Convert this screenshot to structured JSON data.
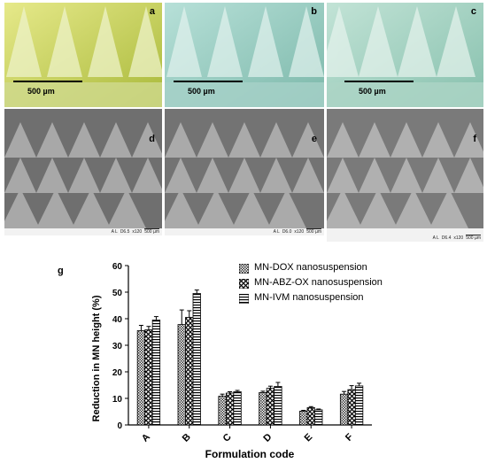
{
  "panels": [
    {
      "label": "a",
      "scale": "500 µm"
    },
    {
      "label": "b",
      "scale": "500 µm"
    },
    {
      "label": "c",
      "scale": "500 µm"
    },
    {
      "label": "d",
      "meta": [
        "A L",
        "D6.5",
        "x120",
        "500 µm"
      ]
    },
    {
      "label": "e",
      "meta": [
        "A L",
        "D6.0",
        "x120",
        "500 µm"
      ]
    },
    {
      "label": "f",
      "meta": [
        "A L",
        "D6.4",
        "x120",
        "500 µm"
      ]
    }
  ],
  "colors": {
    "micro_a": "#c8d24a",
    "micro_b": "#9ecfc4",
    "micro_c": "#a7d3c3",
    "sem": "#8a8a8a",
    "bar_fill": "#d9d9d9"
  },
  "chart_data": {
    "type": "bar",
    "panel_label": "g",
    "categories": [
      "A",
      "B",
      "C",
      "D",
      "E",
      "F"
    ],
    "series": [
      {
        "name": "MN-DOX nanosuspension",
        "pattern": "checker-fine",
        "values": [
          35.5,
          37.8,
          10.8,
          12.2,
          5.2,
          11.6
        ],
        "errors": [
          2.0,
          5.5,
          0.8,
          0.5,
          0.3,
          1.0
        ]
      },
      {
        "name": "MN-ABZ-OX nanosuspension",
        "pattern": "crosshatch",
        "values": [
          35.8,
          40.5,
          12.0,
          13.8,
          6.5,
          13.3
        ],
        "errors": [
          1.3,
          2.5,
          0.5,
          0.8,
          0.4,
          1.5
        ]
      },
      {
        "name": "MN-IVM nanosuspension",
        "pattern": "horizontal-lines",
        "values": [
          39.5,
          49.5,
          12.5,
          14.5,
          5.7,
          14.7
        ],
        "errors": [
          1.3,
          1.3,
          0.5,
          1.5,
          0.3,
          1.0
        ]
      }
    ],
    "xlabel": "Formulation code",
    "ylabel": "Reduction in MN height (%)",
    "ylim": [
      0,
      60
    ],
    "yticks": [
      0,
      10,
      20,
      30,
      40,
      50,
      60
    ],
    "legend": "top-right"
  }
}
